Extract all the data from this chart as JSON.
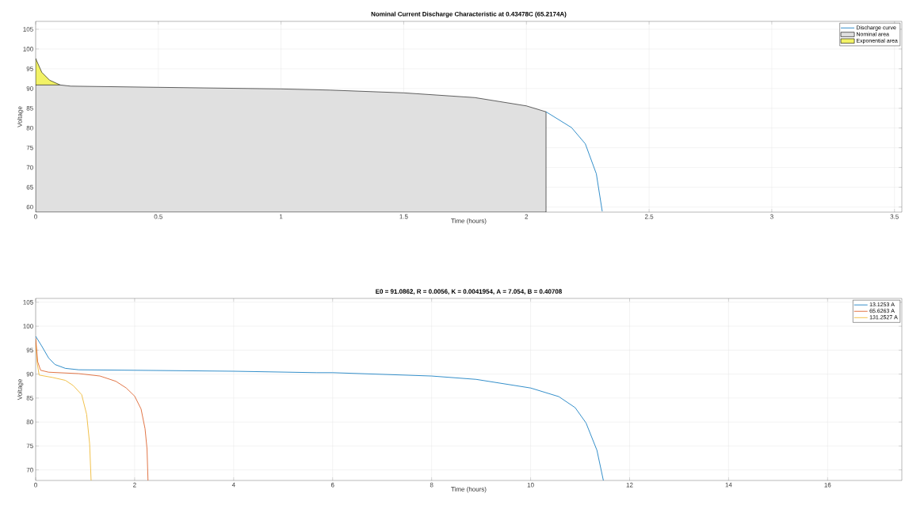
{
  "chart_data": [
    {
      "type": "line",
      "title": "Nominal Current Discharge Characteristic at 0.43478C (65.2174A)",
      "xlabel": "Time (hours)",
      "ylabel": "Voltage",
      "xlim": [
        0,
        3.53
      ],
      "ylim": [
        58.7,
        107
      ],
      "xticks": [
        0,
        0.5,
        1,
        1.5,
        2,
        2.5,
        3,
        3.5
      ],
      "yticks": [
        60,
        65,
        70,
        75,
        80,
        85,
        90,
        95,
        100,
        105
      ],
      "grid": true,
      "legend": "top right",
      "series": [
        {
          "name": "Discharge curve",
          "type": "line",
          "color": "#0072bd",
          "x": [
            2.08,
            2.184,
            2.24,
            2.285,
            2.309
          ],
          "values": [
            84.1,
            80.1,
            76.0,
            68.4,
            58.9
          ]
        },
        {
          "name": "Nominal area",
          "type": "area",
          "color": "#e0e0e0",
          "x": [
            0,
            0.1,
            0.143,
            0.5,
            1,
            1.2,
            1.5,
            1.79,
            2,
            2.08
          ],
          "values": [
            90.9,
            90.9,
            90.6,
            90.3,
            89.9,
            89.6,
            88.9,
            87.7,
            85.6,
            84.1
          ]
        },
        {
          "name": "Exponential area",
          "type": "area",
          "color": "#f2f266",
          "x": [
            0,
            0.025,
            0.057,
            0.1
          ],
          "values": [
            97.6,
            94.1,
            92.1,
            90.9
          ]
        }
      ]
    },
    {
      "type": "line",
      "title": "E0 = 91.0862, R = 0.0056, K = 0.0041954, A = 7.054, B = 0.40708",
      "xlabel": "Time (hours)",
      "ylabel": "Voltage",
      "xlim": [
        0,
        17.5
      ],
      "ylim": [
        67.8,
        105.8
      ],
      "xticks": [
        0,
        2,
        4,
        6,
        8,
        10,
        12,
        14,
        16
      ],
      "yticks": [
        70,
        75,
        80,
        85,
        90,
        95,
        100,
        105
      ],
      "grid": true,
      "legend": "top right",
      "series": [
        {
          "name": "13.1253 A",
          "color": "#0072bd",
          "x": [
            0,
            0.12,
            0.26,
            0.39,
            0.6,
            0.87,
            2,
            4,
            5.68,
            6,
            8,
            8.9,
            10,
            10.57,
            10.9,
            11.12,
            11.34,
            11.47
          ],
          "values": [
            97.9,
            95.9,
            93.4,
            92.0,
            91.2,
            90.9,
            90.8,
            90.6,
            90.3,
            90.3,
            89.6,
            88.9,
            87.1,
            85.3,
            83.0,
            79.8,
            74.1,
            67.8
          ]
        },
        {
          "name": "65.6263 A",
          "color": "#d95319",
          "x": [
            0,
            0.04,
            0.1,
            0.26,
            0.87,
            1.3,
            1.62,
            1.83,
            2.0,
            2.13,
            2.21,
            2.25,
            2.27
          ],
          "values": [
            97.5,
            92.6,
            90.8,
            90.4,
            90.1,
            89.6,
            88.5,
            87.1,
            85.4,
            82.7,
            78.6,
            74.4,
            67.8
          ]
        },
        {
          "name": "131.2527 A",
          "color": "#edb120",
          "x": [
            0,
            0.03,
            0.07,
            0.34,
            0.6,
            0.76,
            0.93,
            1.03,
            1.09,
            1.12
          ],
          "values": [
            97.2,
            92.4,
            89.8,
            89.3,
            88.7,
            87.6,
            85.7,
            81.6,
            75.5,
            67.8
          ]
        }
      ]
    }
  ]
}
